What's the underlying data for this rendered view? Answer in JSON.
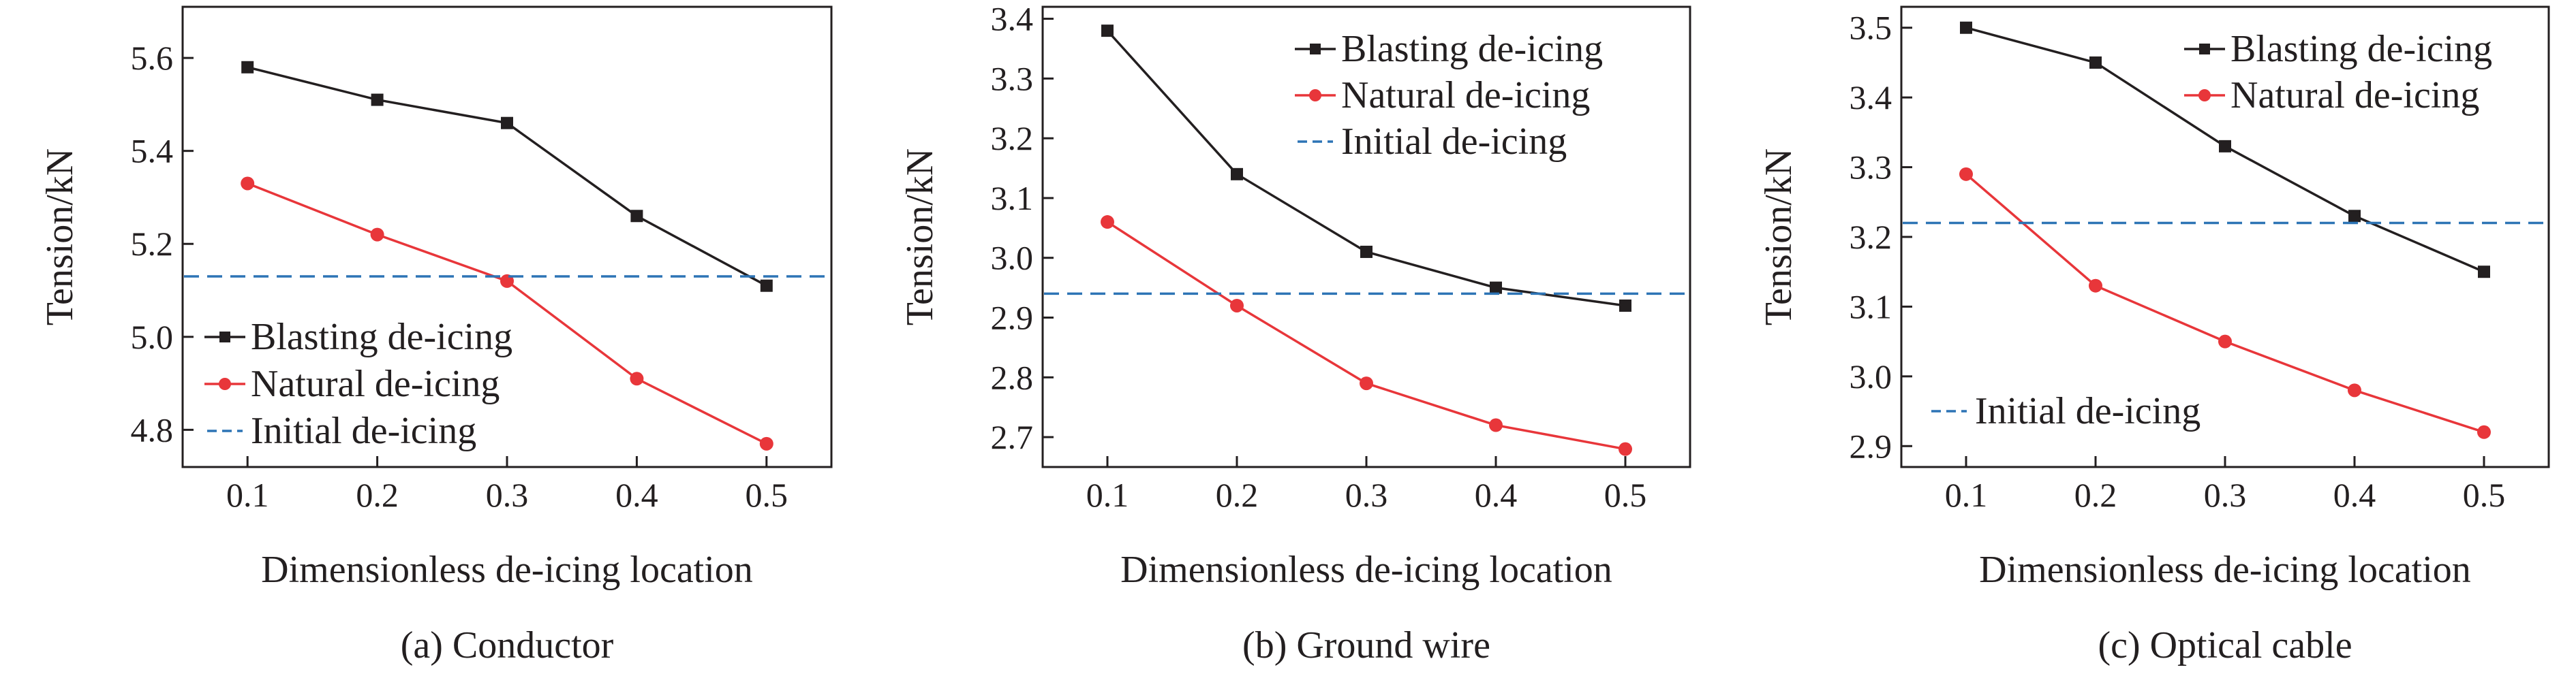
{
  "figure": {
    "panels": [
      {
        "caption": "(a) Conductor"
      },
      {
        "caption": "(b) Ground wire"
      },
      {
        "caption": "(c) Optical cable"
      }
    ]
  },
  "colors": {
    "blasting": "#231f20",
    "natural": "#e8363a",
    "initial": "#2d74b5",
    "axis": "#231f20"
  },
  "chart_data": [
    {
      "type": "line",
      "caption": "(a) Conductor",
      "xlabel": "Dimensionless de-icing location",
      "ylabel": "Tension/kN",
      "x": [
        0.1,
        0.2,
        0.3,
        0.4,
        0.5
      ],
      "xticks": [
        "0.1",
        "0.2",
        "0.3",
        "0.4",
        "0.5"
      ],
      "xlim": [
        0.05,
        0.55
      ],
      "yticks": [
        "4.8",
        "5.0",
        "5.2",
        "5.4",
        "5.6"
      ],
      "ylim": [
        4.72,
        5.71
      ],
      "series": [
        {
          "name": "Blasting de-icing",
          "marker": "square",
          "values": [
            5.58,
            5.51,
            5.46,
            5.26,
            5.11
          ]
        },
        {
          "name": "Natural de-icing",
          "marker": "circle",
          "values": [
            5.33,
            5.22,
            5.12,
            4.91,
            4.77
          ]
        },
        {
          "name": "Initial de-icing",
          "style": "dashed",
          "value": 5.13
        }
      ],
      "legend_position": "bottom-left"
    },
    {
      "type": "line",
      "caption": "(b) Ground wire",
      "xlabel": "Dimensionless de-icing location",
      "ylabel": "Tension/kN",
      "x": [
        0.1,
        0.2,
        0.3,
        0.4,
        0.5
      ],
      "xticks": [
        "0.1",
        "0.2",
        "0.3",
        "0.4",
        "0.5"
      ],
      "xlim": [
        0.05,
        0.55
      ],
      "yticks": [
        "2.7",
        "2.8",
        "2.9",
        "3.0",
        "3.1",
        "3.2",
        "3.3",
        "3.4"
      ],
      "ylim": [
        2.65,
        3.42
      ],
      "series": [
        {
          "name": "Blasting de-icing",
          "marker": "square",
          "values": [
            3.38,
            3.14,
            3.01,
            2.95,
            2.92
          ]
        },
        {
          "name": "Natural de-icing",
          "marker": "circle",
          "values": [
            3.06,
            2.92,
            2.79,
            2.72,
            2.68
          ]
        },
        {
          "name": "Initial de-icing",
          "style": "dashed",
          "value": 2.94
        }
      ],
      "legend_position": "top-right"
    },
    {
      "type": "line",
      "caption": "(c) Optical cable",
      "xlabel": "Dimensionless de-icing location",
      "ylabel": "Tension/kN",
      "x": [
        0.1,
        0.2,
        0.3,
        0.4,
        0.5
      ],
      "xticks": [
        "0.1",
        "0.2",
        "0.3",
        "0.4",
        "0.5"
      ],
      "xlim": [
        0.05,
        0.55
      ],
      "yticks": [
        "2.9",
        "3.0",
        "3.1",
        "3.2",
        "3.3",
        "3.4",
        "3.5"
      ],
      "ylim": [
        2.87,
        3.53
      ],
      "series": [
        {
          "name": "Blasting de-icing",
          "marker": "square",
          "values": [
            3.5,
            3.45,
            3.33,
            3.23,
            3.15
          ]
        },
        {
          "name": "Natural de-icing",
          "marker": "circle",
          "values": [
            3.29,
            3.13,
            3.05,
            2.98,
            2.92
          ]
        },
        {
          "name": "Initial de-icing",
          "style": "dashed",
          "value": 3.22
        }
      ],
      "legend_position": "top-right / bottom-left (split)"
    }
  ]
}
